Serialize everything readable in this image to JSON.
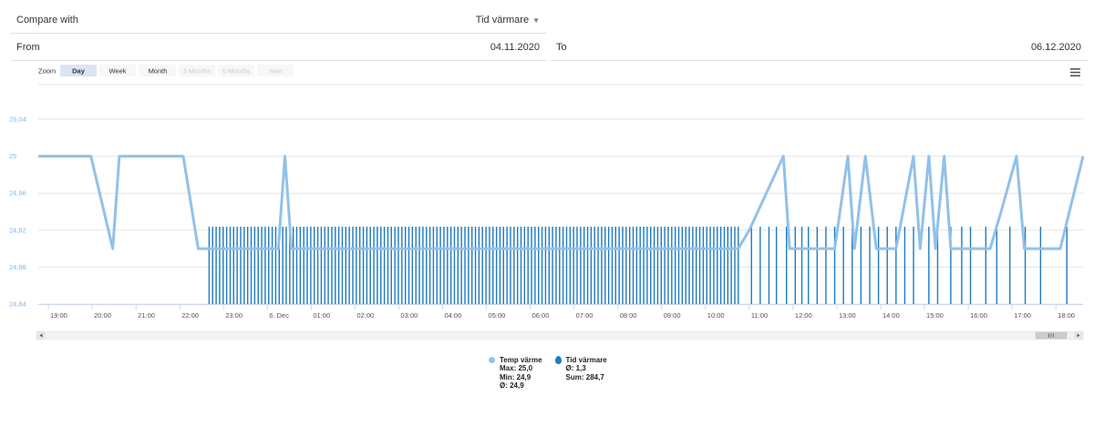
{
  "header": {
    "compare_label": "Compare with",
    "compare_value": "Tid värmare",
    "from_label": "From",
    "from_value": "04.11.2020",
    "to_label": "To",
    "to_value": "06.12.2020"
  },
  "zoom": {
    "label": "Zoom",
    "buttons": [
      {
        "label": "Day",
        "active": true,
        "enabled": true
      },
      {
        "label": "Week",
        "active": false,
        "enabled": true
      },
      {
        "label": "Month",
        "active": false,
        "enabled": true
      },
      {
        "label": "3 Months",
        "active": false,
        "enabled": false
      },
      {
        "label": "6 Months",
        "active": false,
        "enabled": false
      },
      {
        "label": "Year",
        "active": false,
        "enabled": false
      }
    ]
  },
  "menu_icon": "hamburger-menu-icon",
  "legend": [
    {
      "name": "Temp värme",
      "stats": [
        "Max: 25,0",
        "Min: 24,9",
        "Ø: 24,9"
      ],
      "color": "#92c1e9",
      "marker": "circle"
    },
    {
      "name": "Tid värmare",
      "stats": [
        "Ø: 1,3",
        "Sum: 284,7"
      ],
      "color": "#1f7bc1",
      "marker": "drop"
    }
  ],
  "colors": {
    "temp_line": "#92c1e9",
    "bars": "#1f7bc1",
    "active_zoom": "#dbe5f6",
    "axis_label": "#7cb5ec"
  },
  "scrollbar_grip": "scrollbar-grip-icon",
  "chart_data": {
    "type": "line",
    "x_unit": "hours from 19:00 (5 Dec)",
    "x_range": [
      -0.23,
      23.62
    ],
    "x_tick_labels": [
      "19:00",
      "20:00",
      "21:00",
      "22:00",
      "23:00",
      "6. Dec",
      "01:00",
      "02:00",
      "03:00",
      "04:00",
      "05:00",
      "06:00",
      "07:00",
      "08:00",
      "09:00",
      "10:00",
      "11:00",
      "12:00",
      "13:00",
      "14:00",
      "15:00",
      "16:00",
      "17:00",
      "18:00"
    ],
    "y_tick_labels": [
      "24,84",
      "24,88",
      "24,92",
      "24,96",
      "25",
      "25,04"
    ],
    "y_ticks": [
      24.84,
      24.88,
      24.92,
      24.96,
      25.0,
      25.04
    ],
    "ylim": [
      24.84,
      25.04
    ],
    "grid": true,
    "legend_position": "bottom",
    "series": [
      {
        "name": "Temp värme",
        "type": "line",
        "points": [
          [
            -0.23,
            25.0
          ],
          [
            0.15,
            25.0
          ],
          [
            0.97,
            25.0
          ],
          [
            1.47,
            24.9
          ],
          [
            1.62,
            25.0
          ],
          [
            3.08,
            25.0
          ],
          [
            3.42,
            24.9
          ],
          [
            5.25,
            24.9
          ],
          [
            5.4,
            25.0
          ],
          [
            5.55,
            24.9
          ],
          [
            15.75,
            24.9
          ],
          [
            16.0,
            24.92
          ],
          [
            16.78,
            25.0
          ],
          [
            16.92,
            24.9
          ],
          [
            17.95,
            24.9
          ],
          [
            18.25,
            25.0
          ],
          [
            18.4,
            24.9
          ],
          [
            18.65,
            25.0
          ],
          [
            18.9,
            24.9
          ],
          [
            19.35,
            24.9
          ],
          [
            19.75,
            25.0
          ],
          [
            19.9,
            24.9
          ],
          [
            20.1,
            25.0
          ],
          [
            20.25,
            24.9
          ],
          [
            20.45,
            25.0
          ],
          [
            20.6,
            24.9
          ],
          [
            21.5,
            24.9
          ],
          [
            21.75,
            24.94
          ],
          [
            22.1,
            25.0
          ],
          [
            22.28,
            24.9
          ],
          [
            23.1,
            24.9
          ],
          [
            23.62,
            25.0
          ]
        ]
      },
      {
        "name": "Tid värmare",
        "type": "column",
        "dense_ranges": [
          [
            3.67,
            15.82,
            0.08
          ]
        ],
        "extra_x": [
          16.05,
          16.25,
          16.45,
          16.62,
          16.85,
          17.05,
          17.2,
          17.35,
          17.55,
          17.75,
          17.95,
          18.15,
          18.35,
          18.55,
          18.75,
          18.95,
          19.15,
          19.35,
          19.55,
          19.75,
          20.1,
          20.3,
          20.6,
          20.85,
          21.05,
          21.4,
          21.65,
          21.95,
          22.3,
          22.65,
          23.25
        ],
        "value": 1.3,
        "value_note": "bar heights rendered at a constant level"
      }
    ]
  }
}
